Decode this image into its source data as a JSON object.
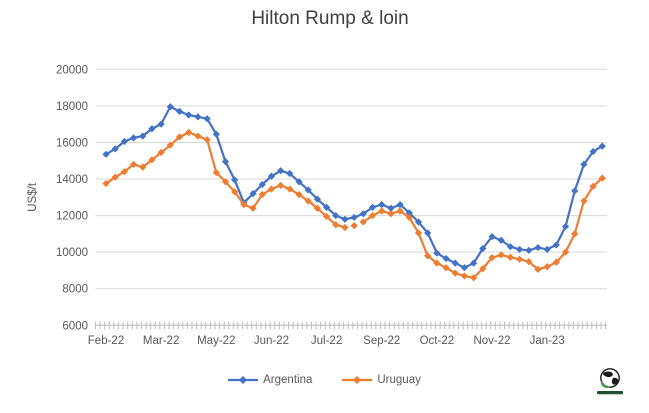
{
  "title": "Hilton Rump & loin",
  "chart_data": {
    "type": "line",
    "title": "Hilton Rump & loin",
    "xlabel": "",
    "ylabel": "US$/t",
    "ylim": [
      6000,
      20000
    ],
    "y_ticks": [
      6000,
      8000,
      10000,
      12000,
      14000,
      16000,
      18000,
      20000
    ],
    "x_tick_labels": [
      "Feb-22",
      "Mar-22",
      "May-22",
      "Jun-22",
      "Jul-22",
      "Sep-22",
      "Oct-22",
      "Nov-22",
      "Jan-23"
    ],
    "x_label_interval": 6,
    "x_unit": "weekly observations",
    "grid": "horizontal",
    "gridline_color": "#d9d9d9",
    "axis_color": "#bfbfbf",
    "tick_label_color": "#595959",
    "legend_position": "bottom",
    "series": [
      {
        "name": "Argentina",
        "color": "#4472c4",
        "marker": "diamond",
        "values": [
          15350,
          15650,
          16050,
          16250,
          16350,
          16750,
          17000,
          17950,
          17700,
          17500,
          17400,
          17300,
          16450,
          14950,
          13950,
          12700,
          13200,
          13700,
          14150,
          14450,
          14300,
          13850,
          13400,
          12900,
          12450,
          12000,
          11800,
          11900,
          12100,
          12450,
          12600,
          12400,
          12600,
          12150,
          11650,
          11050,
          9950,
          9650,
          9400,
          9150,
          9400,
          10200,
          10850,
          10650,
          10300,
          10150,
          10100,
          10250,
          10150,
          10400,
          11400,
          13350,
          14800,
          15500,
          15800
        ]
      },
      {
        "name": "Uruguay",
        "color": "#ed7d31",
        "marker": "diamond",
        "isolated_points": [
          27
        ],
        "values": [
          13750,
          14100,
          14400,
          14800,
          14650,
          15050,
          15450,
          15850,
          16300,
          16550,
          16350,
          16150,
          14350,
          13850,
          13300,
          12600,
          12400,
          13150,
          13450,
          13650,
          13450,
          13150,
          12800,
          12400,
          11950,
          11500,
          11350,
          11450,
          11650,
          12000,
          12250,
          12100,
          12250,
          11900,
          11050,
          9800,
          9400,
          9150,
          8850,
          8700,
          8600,
          9100,
          9700,
          9850,
          9720,
          9610,
          9480,
          9060,
          9200,
          9450,
          10000,
          11000,
          12800,
          13600,
          14050
        ]
      }
    ]
  },
  "logo": {
    "icon": "globe-logo-icon"
  }
}
